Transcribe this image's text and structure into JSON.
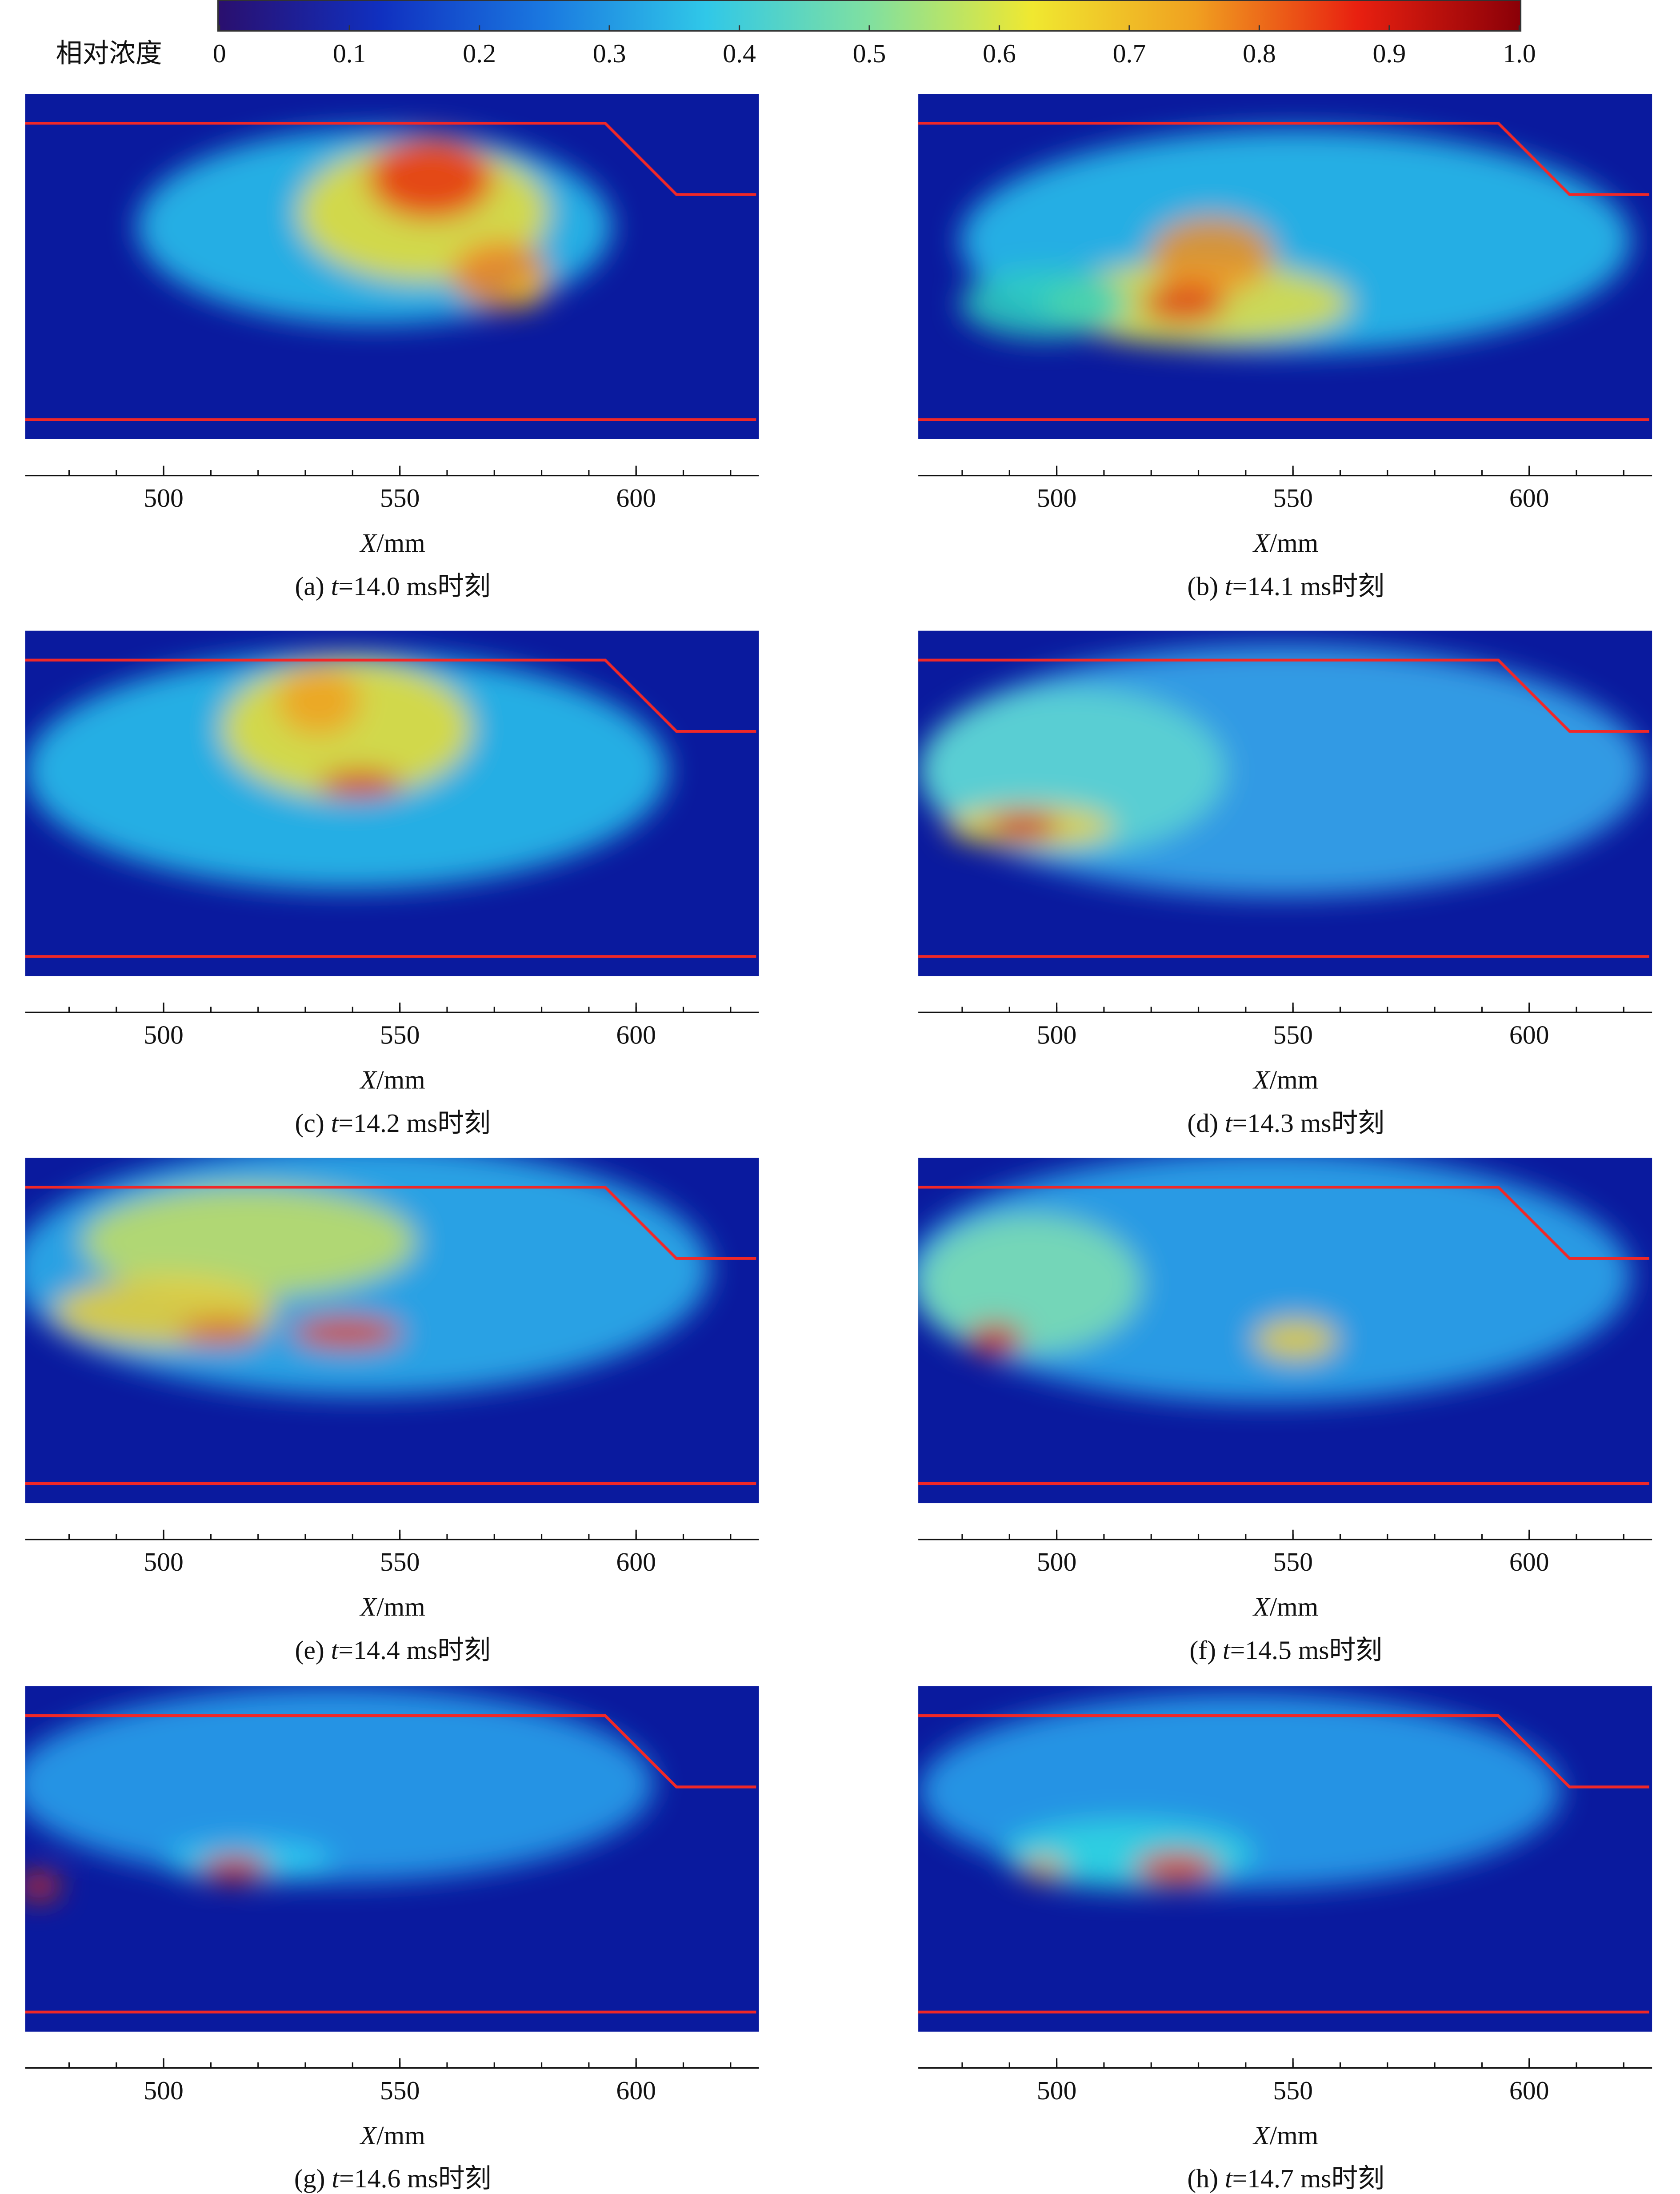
{
  "chart_data": {
    "type": "image-panels",
    "colorbar": {
      "label": "相对浓度",
      "colors": [
        "#2a0f6e",
        "#1030c0",
        "#1a78e0",
        "#30c8e8",
        "#80e0a0",
        "#f0e830",
        "#f0a020",
        "#e82010",
        "#8a0008"
      ],
      "lim": [
        0,
        1
      ],
      "ticks": [
        0,
        0.1,
        0.2,
        0.3,
        0.4,
        0.5,
        0.6,
        0.7,
        0.8,
        0.9,
        {
          "value": 1,
          "label": "1.0"
        }
      ]
    },
    "xaxis": {
      "label_var": "X",
      "label_unit": "/mm",
      "xlim": [
        470.7,
        626
      ],
      "xticks": [
        500,
        550,
        600
      ],
      "xticks_minor": [
        480,
        490,
        500,
        510,
        520,
        530,
        540,
        550,
        560,
        570,
        580,
        590,
        600,
        610,
        620
      ]
    },
    "panels": [
      {
        "tag": "(a)",
        "var": "t",
        "text": "=14.0 ms时刻"
      },
      {
        "tag": "(b)",
        "var": "t",
        "text": "=14.1 ms时刻"
      },
      {
        "tag": "(c)",
        "var": "t",
        "text": "=14.2 ms时刻"
      },
      {
        "tag": "(d)",
        "var": "t",
        "text": "=14.3 ms时刻"
      },
      {
        "tag": "(e)",
        "var": "t",
        "text": "=14.4 ms时刻"
      },
      {
        "tag": "(f)",
        "var": "t",
        "text": "=14.5 ms时刻"
      },
      {
        "tag": "(g)",
        "var": "t",
        "text": "=14.6 ms时刻"
      },
      {
        "tag": "(h)",
        "var": "t",
        "text": "=14.7 ms时刻"
      }
    ]
  }
}
